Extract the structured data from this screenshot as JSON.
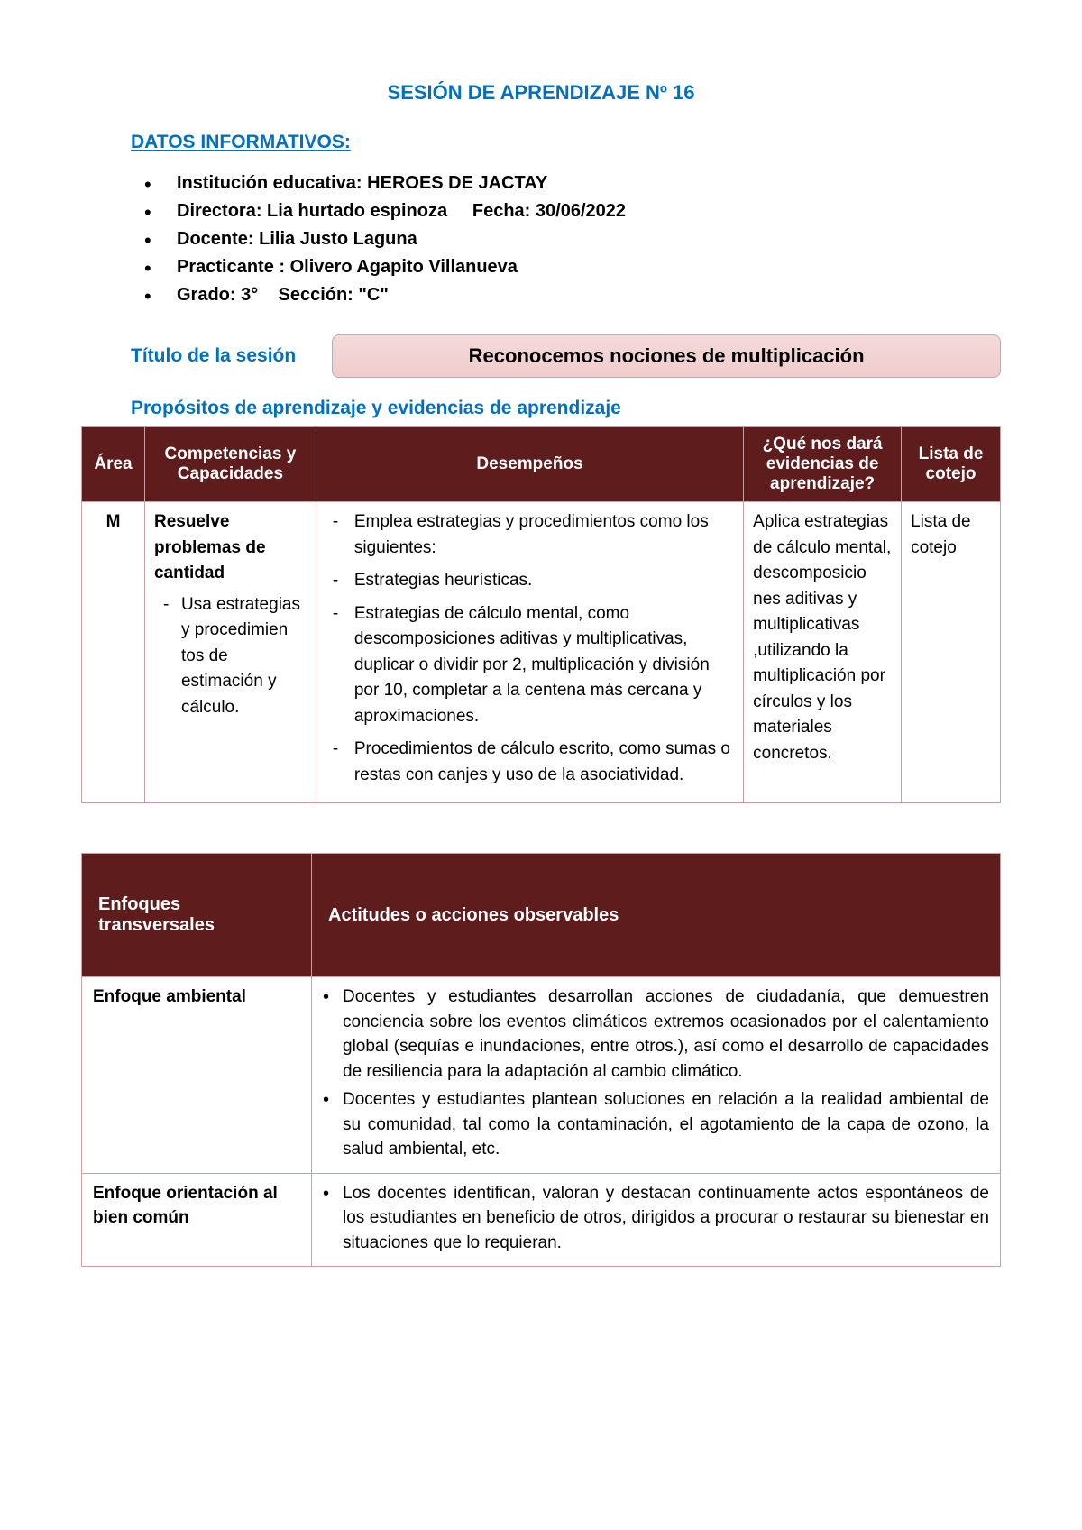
{
  "colors": {
    "accent_blue": "#0070c0",
    "table_header_bg": "#5f1c1c",
    "table_header_fg": "#ffffff",
    "table_border": "#c7a1a1",
    "title_box_bg_top": "#f5dada",
    "title_box_bg_bottom": "#f0cccc",
    "title_box_border": "#b0b0b0",
    "page_bg": "#ffffff",
    "text": "#000000"
  },
  "typography": {
    "base_font": "Arial",
    "title_pt": 22,
    "section_pt": 21,
    "body_pt": 19
  },
  "header": {
    "title": "SESIÓN DE APRENDIZAJE Nº 16",
    "datos_label": "DATOS INFORMATIVOS:"
  },
  "info": {
    "institucion_label": "Institución educativa:",
    "institucion_value": "HEROES DE JACTAY",
    "directora_label": "Directora:",
    "directora_value": "Lia hurtado espinoza",
    "fecha_label": "Fecha:",
    "fecha_value": "30/06/2022",
    "docente_label": "Docente:",
    "docente_value": "Lilia Justo Laguna",
    "practicante_label": "Practicante :",
    "practicante_value": "Olivero Agapito Villanueva",
    "grado_label": "Grado:",
    "grado_value": "3°",
    "seccion_label": "Sección:",
    "seccion_value": "\"C\""
  },
  "titulo": {
    "label": "Título de la sesión",
    "value": "Reconocemos nociones de multiplicación"
  },
  "propositos_label": "Propósitos de aprendizaje y evidencias de aprendizaje",
  "table1": {
    "headers": {
      "area": "Área",
      "competencias": "Competencias y Capacidades",
      "desempenos": "Desempeños",
      "evidencias": "¿Qué nos dará evidencias de aprendizaje?",
      "lista": "Lista de cotejo"
    },
    "row": {
      "area": "M",
      "comp_title": "Resuelve problemas de cantidad",
      "comp_sub": "Usa estrategias y procedimien tos de estimación y cálculo.",
      "des_1": "Emplea estrategias y procedimientos como los siguientes:",
      "des_2": "Estrategias heurísticas.",
      "des_3": "Estrategias de cálculo mental, como descomposiciones aditivas y multiplicativas, duplicar o dividir por 2, multiplicación y división por 10, completar a la centena más cercana y aproximaciones.",
      "des_4": "Procedimientos de cálculo escrito, como sumas o restas con canjes y uso de la asociatividad.",
      "evidencias": "Aplica estrategias de cálculo mental, descomposicio nes aditivas y multiplicativas ,utilizando la multiplicación por círculos y los materiales concretos.",
      "lista": "Lista de cotejo"
    }
  },
  "table2": {
    "headers": {
      "enfoques": "Enfoques transversales",
      "actitudes": "Actitudes o acciones observables"
    },
    "row1": {
      "label": "Enfoque ambiental",
      "item1": "Docentes y estudiantes desarrollan acciones de ciudadanía, que demuestren conciencia sobre los eventos climáticos extremos ocasionados por el calentamiento global (sequías e inundaciones, entre otros.), así como el desarrollo de capacidades de resiliencia para la adaptación al cambio climático.",
      "item2": "Docentes y estudiantes plantean soluciones en relación a la realidad ambiental de su comunidad, tal como la contaminación, el  agotamiento de la capa de ozono, la salud ambiental, etc."
    },
    "row2": {
      "label": "Enfoque orientación al bien común",
      "item1": "Los docentes identifican, valoran y destacan continuamente actos espontáneos de los estudiantes en beneficio de otros, dirigidos a procurar o restaurar su bienestar en situaciones que lo requieran."
    }
  }
}
